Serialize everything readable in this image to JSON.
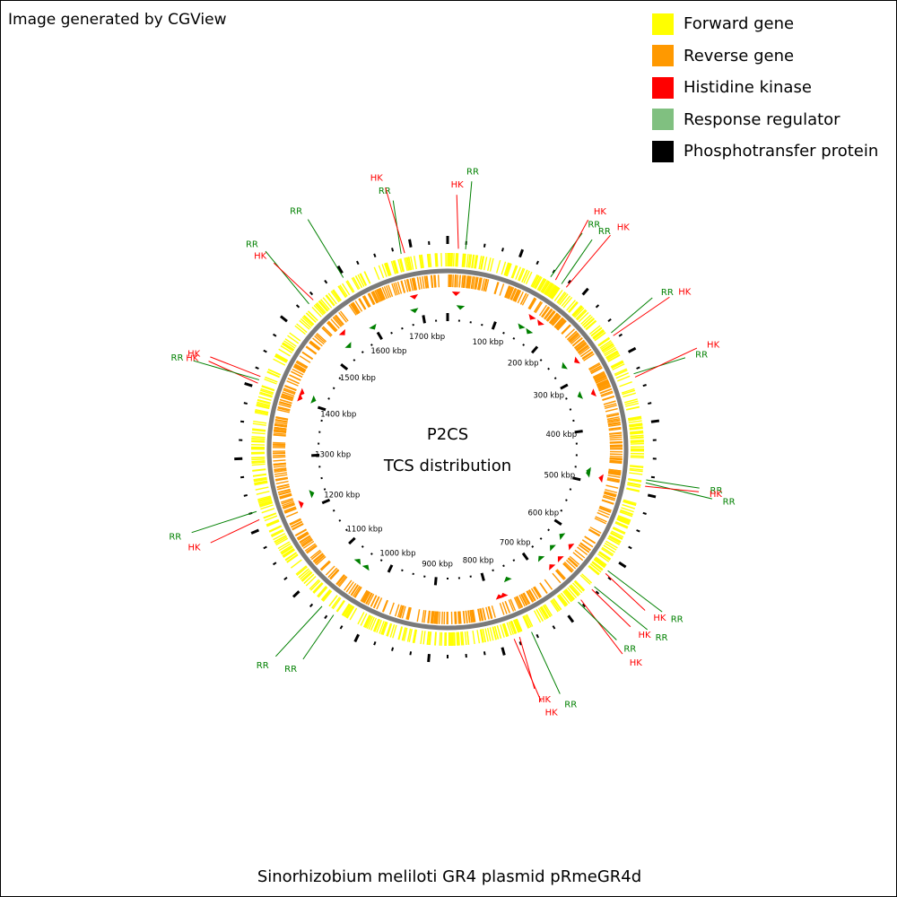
{
  "header": {
    "credit": "Image generated by CGView"
  },
  "legend": [
    {
      "label": "Forward gene",
      "color": "#ffff00"
    },
    {
      "label": "Reverse gene",
      "color": "#ff9900"
    },
    {
      "label": "Histidine kinase",
      "color": "#ff0000"
    },
    {
      "label": "Response regulator",
      "color": "#80c080"
    },
    {
      "label": "Phosphotransfer protein",
      "color": "#000000"
    }
  ],
  "map": {
    "center_title": "P2CS",
    "center_subtitle": "TCS distribution",
    "sequence_length_kbp": 1750,
    "tick_labels": [
      "100 kbp",
      "200 kbp",
      "300 kbp",
      "400 kbp",
      "500 kbp",
      "600 kbp",
      "700 kbp",
      "800 kbp",
      "900 kbp",
      "1000 kbp",
      "1100 kbp",
      "1200 kbp",
      "1300 kbp",
      "1400 kbp",
      "1500 kbp",
      "1600 kbp",
      "1700 kbp"
    ],
    "feature_colors": {
      "hk": "#ff0000",
      "rr": "#008000"
    },
    "features": [
      {
        "label": "HK",
        "type": "hk",
        "kbp": 15
      },
      {
        "label": "RR",
        "type": "rr",
        "kbp": 25
      },
      {
        "label": "RR",
        "type": "rr",
        "kbp": 150
      },
      {
        "label": "HK",
        "type": "hk",
        "kbp": 158
      },
      {
        "label": "RR",
        "type": "rr",
        "kbp": 168
      },
      {
        "label": "HK",
        "type": "hk",
        "kbp": 176
      },
      {
        "label": "RR",
        "type": "rr",
        "kbp": 265
      },
      {
        "label": "HK",
        "type": "hk",
        "kbp": 270
      },
      {
        "label": "RR",
        "type": "rr",
        "kbp": 330
      },
      {
        "label": "HK",
        "type": "hk",
        "kbp": 335
      },
      {
        "label": "RR",
        "type": "rr",
        "kbp": 480
      },
      {
        "label": "RR",
        "type": "rr",
        "kbp": 484
      },
      {
        "label": "HK",
        "type": "hk",
        "kbp": 489
      },
      {
        "label": "RR",
        "type": "rr",
        "kbp": 618
      },
      {
        "label": "HK",
        "type": "hk",
        "kbp": 623
      },
      {
        "label": "RR",
        "type": "rr",
        "kbp": 647
      },
      {
        "label": "HK",
        "type": "hk",
        "kbp": 652
      },
      {
        "label": "HK",
        "type": "hk",
        "kbp": 673
      },
      {
        "label": "RR",
        "type": "rr",
        "kbp": 678
      },
      {
        "label": "RR",
        "type": "rr",
        "kbp": 755
      },
      {
        "label": "HK",
        "type": "hk",
        "kbp": 773
      },
      {
        "label": "HK",
        "type": "hk",
        "kbp": 781
      },
      {
        "label": "RR",
        "type": "rr",
        "kbp": 1043
      },
      {
        "label": "RR",
        "type": "rr",
        "kbp": 1063
      },
      {
        "label": "HK",
        "type": "hk",
        "kbp": 1213
      },
      {
        "label": "RR",
        "type": "rr",
        "kbp": 1225
      },
      {
        "label": "HK",
        "type": "hk",
        "kbp": 1406
      },
      {
        "label": "RR",
        "type": "rr",
        "kbp": 1411
      },
      {
        "label": "HK",
        "type": "hk",
        "kbp": 1416
      },
      {
        "label": "RR",
        "type": "rr",
        "kbp": 1538
      },
      {
        "label": "HK",
        "type": "hk",
        "kbp": 1546
      },
      {
        "label": "RR",
        "type": "rr",
        "kbp": 1598
      },
      {
        "label": "RR",
        "type": "rr",
        "kbp": 1685
      },
      {
        "label": "HK",
        "type": "hk",
        "kbp": 1690
      }
    ]
  },
  "footer": {
    "title": "Sinorhizobium meliloti GR4 plasmid pRmeGR4d"
  }
}
